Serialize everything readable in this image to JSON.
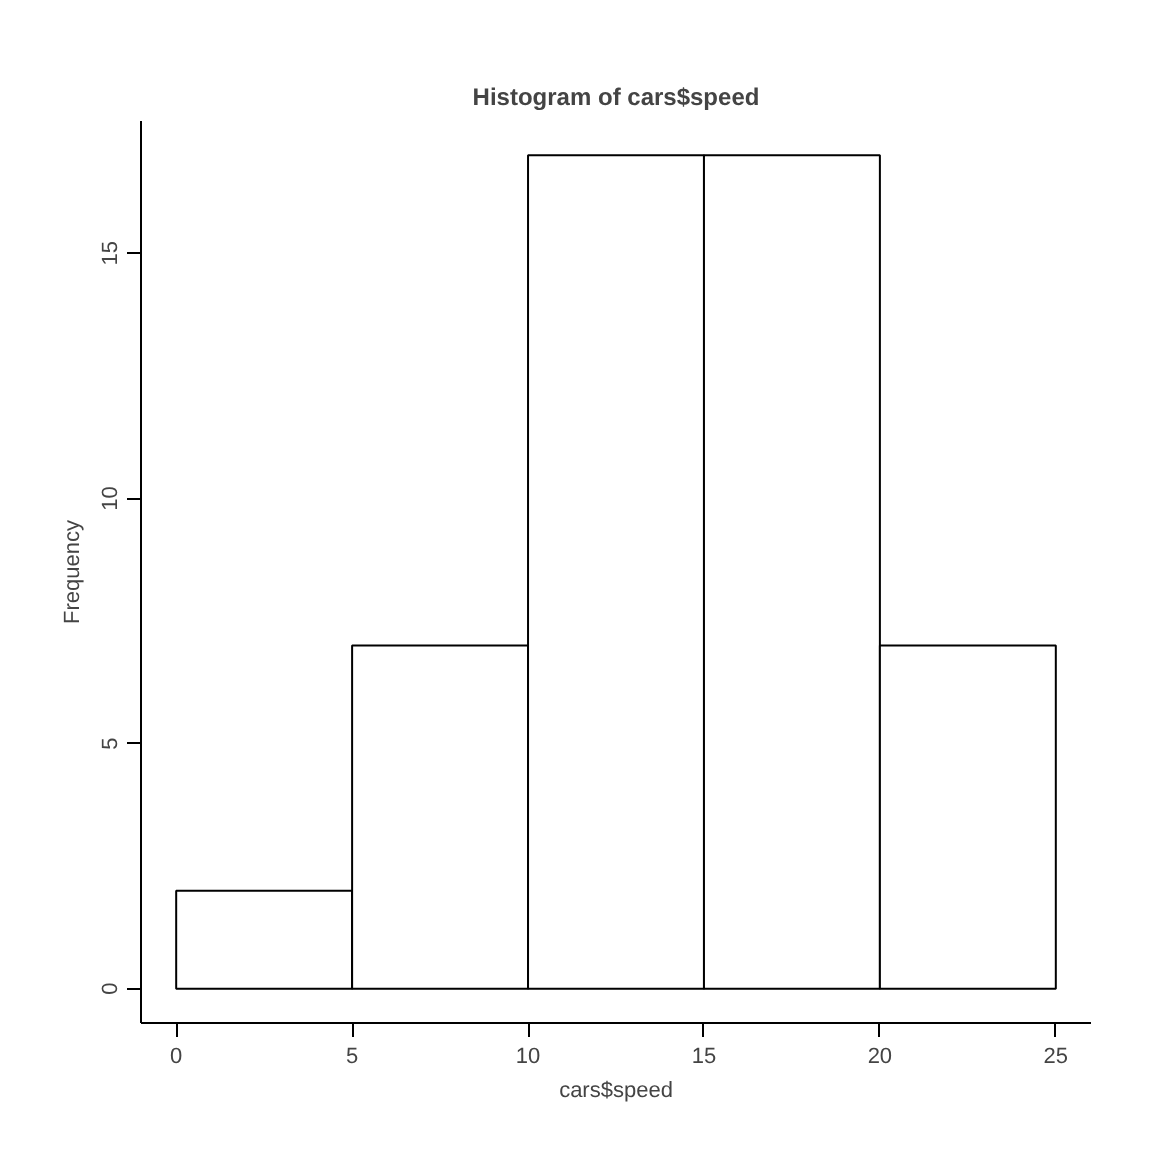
{
  "chart_data": {
    "type": "histogram",
    "title": "Histogram of cars$speed",
    "xlabel": "cars$speed",
    "ylabel": "Frequency",
    "bins": [
      0,
      5,
      10,
      15,
      20,
      25
    ],
    "values": [
      2,
      7,
      17,
      17,
      7
    ],
    "color": "#ffffff",
    "xlim": [
      -1,
      26
    ],
    "ylim": [
      -0.7,
      17.7
    ],
    "xticks": [
      0,
      5,
      10,
      15,
      20,
      25
    ],
    "yticks": [
      0,
      5,
      10,
      15
    ],
    "grid": false
  }
}
